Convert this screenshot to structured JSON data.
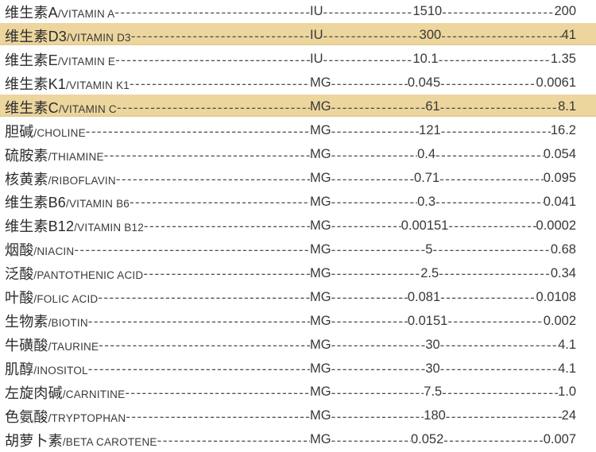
{
  "table": {
    "rows": [
      {
        "name_zh": "维生素A",
        "name_en": "/VITAMIN A",
        "unit": "IU",
        "value1": "1510",
        "value2": "200",
        "highlight": false
      },
      {
        "name_zh": "维生素D3",
        "name_en": "/VITAMIN D3",
        "unit": "IU",
        "value1": "300",
        "value2": "41",
        "highlight": true
      },
      {
        "name_zh": "维生素E",
        "name_en": "/VITAMIN E",
        "unit": "IU",
        "value1": "10.1",
        "value2": "1.35",
        "highlight": false
      },
      {
        "name_zh": "维生素K1",
        "name_en": "/VITAMIN K1",
        "unit": "MG",
        "value1": "0.045",
        "value2": "0.0061",
        "highlight": false
      },
      {
        "name_zh": "维生素C",
        "name_en": "/VITAMIN C",
        "unit": "MG",
        "value1": "61",
        "value2": "8.1",
        "highlight": true
      },
      {
        "name_zh": "胆碱",
        "name_en": "/CHOLINE",
        "unit": "MG",
        "value1": "121",
        "value2": "16.2",
        "highlight": false
      },
      {
        "name_zh": "硫胺素",
        "name_en": "/THIAMINE",
        "unit": "MG",
        "value1": "0.4",
        "value2": "0.054",
        "highlight": false
      },
      {
        "name_zh": "核黄素",
        "name_en": "/RIBOFLAVIN",
        "unit": "MG",
        "value1": "0.71",
        "value2": "0.095",
        "highlight": false
      },
      {
        "name_zh": "维生素B6",
        "name_en": "/VITAMIN B6",
        "unit": "MG",
        "value1": "0.3",
        "value2": "0.041",
        "highlight": false
      },
      {
        "name_zh": "维生素B12",
        "name_en": "/VITAMIN B12",
        "unit": "MG",
        "value1": "0.00151",
        "value2": "0.0002",
        "highlight": false
      },
      {
        "name_zh": "烟酸",
        "name_en": "/NIACIN",
        "unit": "MG",
        "value1": "5",
        "value2": "0.68",
        "highlight": false
      },
      {
        "name_zh": "泛酸",
        "name_en": "/PANTOTHENIC ACID",
        "unit": "MG",
        "value1": "2.5",
        "value2": "0.34",
        "highlight": false
      },
      {
        "name_zh": "叶酸",
        "name_en": "/FOLIC ACID",
        "unit": "MG",
        "value1": "0.081",
        "value2": "0.0108",
        "highlight": false
      },
      {
        "name_zh": "生物素",
        "name_en": "/BIOTIN",
        "unit": "MG",
        "value1": "0.0151",
        "value2": "0.002",
        "highlight": false
      },
      {
        "name_zh": "牛磺酸",
        "name_en": "/TAURINE",
        "unit": "MG",
        "value1": "30",
        "value2": "4.1",
        "highlight": false
      },
      {
        "name_zh": "肌醇",
        "name_en": "/INOSITOL",
        "unit": "MG",
        "value1": "30",
        "value2": "4.1",
        "highlight": false
      },
      {
        "name_zh": "左旋肉碱",
        "name_en": "/CARNITINE",
        "unit": "MG",
        "value1": "7.5",
        "value2": "1.0",
        "highlight": false
      },
      {
        "name_zh": "色氨酸",
        "name_en": "/TRYPTOPHAN",
        "unit": "MG",
        "value1": "180",
        "value2": "24",
        "highlight": false
      },
      {
        "name_zh": "胡萝卜素",
        "name_en": "/BETA CAROTENE",
        "unit": "MG",
        "value1": "0.052",
        "value2": "0.007",
        "highlight": false
      }
    ]
  },
  "colors": {
    "highlight_row_background": "#ecd69e",
    "highlight_row_edge": "#e3cd92",
    "text": "#2b2b2b",
    "page_background": "#ffffff"
  }
}
